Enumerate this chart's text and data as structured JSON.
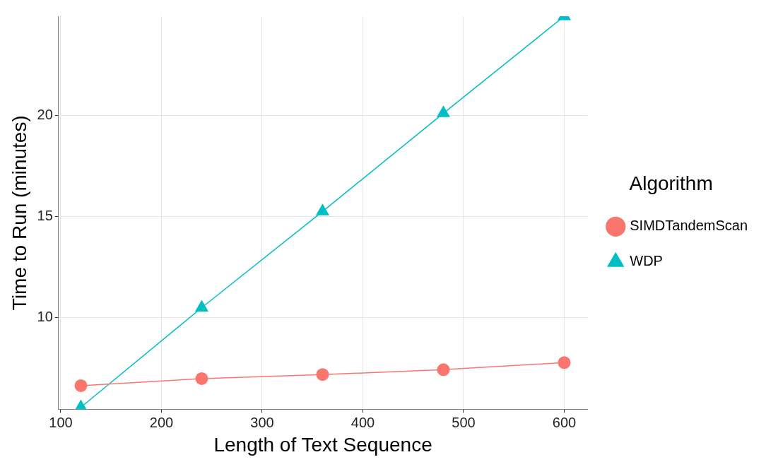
{
  "chart_data": {
    "type": "line",
    "xlabel": "Length of Text Sequence",
    "ylabel": "Time to Run (minutes)",
    "legend_title": "Algorithm",
    "x": [
      120,
      240,
      360,
      480,
      600
    ],
    "series": [
      {
        "name": "SIMDTandemScan",
        "color": "#f8766d",
        "marker": "circle",
        "values": [
          6.62,
          6.97,
          7.17,
          7.41,
          7.76
        ]
      },
      {
        "name": "WDP",
        "color": "#00bfc4",
        "marker": "triangle",
        "values": [
          5.55,
          10.48,
          15.24,
          20.1,
          24.9
        ]
      }
    ],
    "xlim": [
      97.8,
      623
    ],
    "xticks": [
      100,
      200,
      300,
      400,
      500,
      600
    ],
    "ylim": [
      5.45,
      24.9
    ],
    "yticks": [
      10,
      15,
      20
    ],
    "grid": true,
    "legend": "right"
  }
}
